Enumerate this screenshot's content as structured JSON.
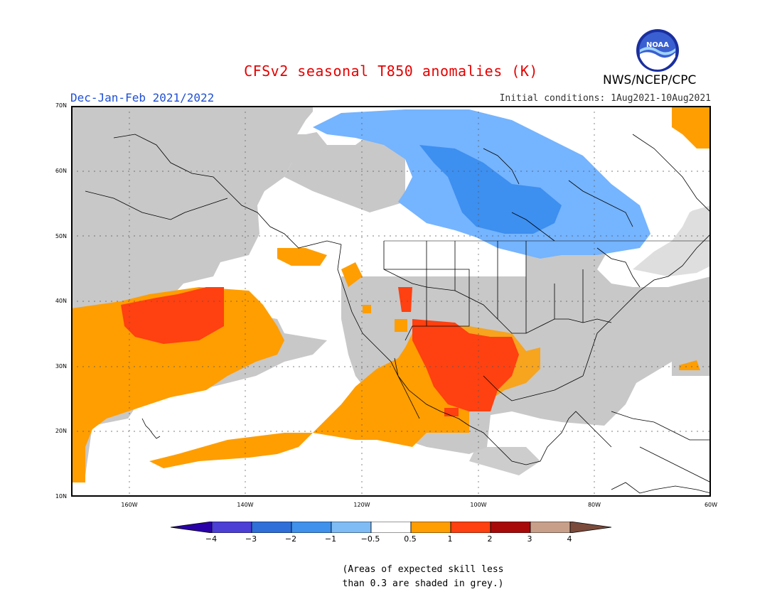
{
  "header": {
    "title": "CFSv2 seasonal T850 anomalies (K)",
    "season": "Dec-Jan-Feb 2021/2022",
    "initial_conditions": "Initial conditions: 1Aug2021-10Aug2021",
    "agency": "NWS/NCEP/CPC",
    "logo_text": "NOAA"
  },
  "map": {
    "lat_labels": [
      "70N",
      "60N",
      "50N",
      "40N",
      "30N",
      "20N",
      "10N"
    ],
    "lon_labels": [
      "160W",
      "140W",
      "120W",
      "100W",
      "80W",
      "60W"
    ],
    "colors": {
      "grey": "#c8c8c8",
      "orange": "#ff9e00",
      "red_orange": "#ff4010",
      "light_blue": "#75b4ff",
      "mid_blue": "#3d8ff0",
      "coast": "#000000"
    }
  },
  "legend": {
    "labels": [
      "−4",
      "−3",
      "−2",
      "−1",
      "−0.5",
      "0.5",
      "1",
      "2",
      "3",
      "4"
    ],
    "colors": [
      "#2a00a8",
      "#4b3fd6",
      "#2f6fd9",
      "#3f91ec",
      "#7fbcf6",
      "#ffffff",
      "#ff9e00",
      "#ff4010",
      "#a80a0a",
      "#c8a08a",
      "#7b4a3a"
    ]
  },
  "note": "(Areas of expected skill less\nthan 0.3 are shaded in grey.)"
}
